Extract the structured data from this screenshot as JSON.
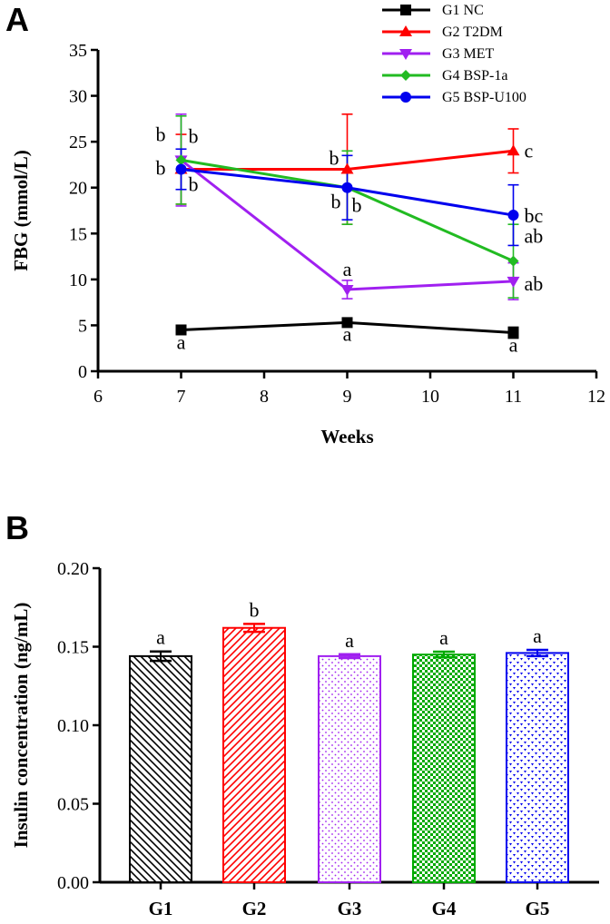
{
  "chart_data": [
    {
      "panel": "A",
      "type": "line",
      "xlabel": "Weeks",
      "ylabel": "FBG (mmol/L)",
      "xlim": [
        6,
        12
      ],
      "ylim": [
        0,
        35
      ],
      "xticks": [
        "6",
        "7",
        "8",
        "9",
        "10",
        "11",
        "12"
      ],
      "yticks": [
        "0",
        "5",
        "10",
        "15",
        "20",
        "25",
        "30",
        "35"
      ],
      "legend_position": "top-right",
      "x": [
        7,
        9,
        11
      ],
      "series": [
        {
          "name": "G1 NC",
          "color": "#000000",
          "marker": "square",
          "values": [
            4.5,
            5.3,
            4.2
          ],
          "errors": [
            0.3,
            0.4,
            0.6
          ],
          "labels": [
            "a",
            "a",
            "a"
          ]
        },
        {
          "name": "G2 T2DM",
          "color": "#ff0000",
          "marker": "triangle-up",
          "values": [
            22.0,
            22.0,
            24.0
          ],
          "errors": [
            3.8,
            6.0,
            2.4
          ],
          "labels": [
            "b",
            "b",
            "c"
          ]
        },
        {
          "name": "G3 MET",
          "color": "#a020f0",
          "marker": "triangle-down",
          "values": [
            23.0,
            8.9,
            9.8
          ],
          "errors": [
            5.0,
            1.0,
            2.0
          ],
          "labels": [
            "b",
            "a",
            "ab"
          ]
        },
        {
          "name": "G4 BSP-1a",
          "color": "#22bb22",
          "marker": "diamond",
          "values": [
            23.0,
            20.0,
            12.0
          ],
          "errors": [
            4.8,
            4.0,
            4.0
          ],
          "labels": [
            "b",
            "b",
            "ab"
          ]
        },
        {
          "name": "G5 BSP-U100",
          "color": "#0000ee",
          "marker": "circle",
          "values": [
            22.0,
            20.0,
            17.0
          ],
          "errors": [
            2.2,
            3.5,
            3.3
          ],
          "labels": [
            "b",
            "b",
            "bc"
          ]
        }
      ]
    },
    {
      "panel": "B",
      "type": "bar",
      "xlabel": "",
      "ylabel": "Insulin concentration (ng/mL)",
      "ylim": [
        0,
        0.2
      ],
      "yticks": [
        "0.00",
        "0.05",
        "0.10",
        "0.15",
        "0.20"
      ],
      "categories": [
        "G1",
        "G2",
        "G3",
        "G4",
        "G5"
      ],
      "values": [
        0.144,
        0.162,
        0.144,
        0.145,
        0.146
      ],
      "errors": [
        0.003,
        0.0025,
        0.0012,
        0.0018,
        0.002
      ],
      "labels": [
        "a",
        "b",
        "a",
        "a",
        "a"
      ],
      "colors": [
        "#000000",
        "#ff0000",
        "#a020f0",
        "#00aa00",
        "#0000ee"
      ],
      "patterns": [
        "diag-back",
        "diag-fwd",
        "dots",
        "checker",
        "tri-dots"
      ]
    }
  ]
}
